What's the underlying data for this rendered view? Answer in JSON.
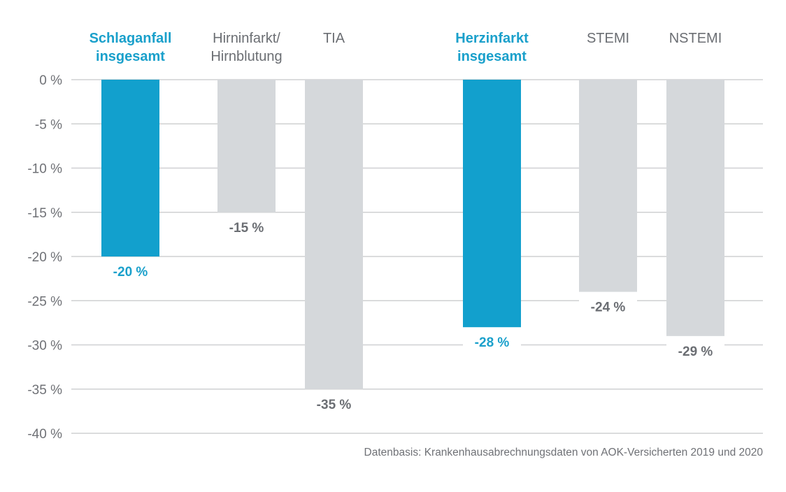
{
  "chart_data": {
    "type": "bar",
    "title": "",
    "xlabel": "",
    "ylabel": "",
    "categories": [
      [
        "Schlaganfall",
        "insgesamt"
      ],
      [
        "Hirninfarkt/",
        "Hirnblutung"
      ],
      [
        "TIA"
      ],
      [
        "Herzinfarkt",
        "insgesamt"
      ],
      [
        "STEMI"
      ],
      [
        "NSTEMI"
      ]
    ],
    "values": [
      -20,
      -15,
      -35,
      -28,
      -24,
      -29
    ],
    "data_labels": [
      "-20 %",
      "-15 %",
      "-35 %",
      "-28 %",
      "-24 %",
      "-29 %"
    ],
    "highlight": [
      true,
      false,
      false,
      true,
      false,
      false
    ],
    "groups": [
      [
        "Schlaganfall insgesamt",
        "Hirninfarkt/Hirnblutung",
        "TIA"
      ],
      [
        "Herzinfarkt insgesamt",
        "STEMI",
        "NSTEMI"
      ]
    ],
    "ylim": [
      -40,
      0
    ],
    "yticks": [
      0,
      -5,
      -10,
      -15,
      -20,
      -25,
      -30,
      -35,
      -40
    ],
    "ytick_labels": [
      "0 %",
      "-5 %",
      "-10 %",
      "-15 %",
      "-20 %",
      "-25 %",
      "-30 %",
      "-35 %",
      "-40 %"
    ],
    "grid": true,
    "legend": "none",
    "colors": {
      "highlight": "#12a0cd",
      "normal": "#d5d8db",
      "highlight_text": "#1aa0cb",
      "normal_text": "#6b6e73",
      "grid": "#cfd0d2"
    }
  },
  "footer": {
    "source": "Datenbasis: Krankenhausabrechnungsdaten von AOK-Versicherten 2019 und 2020"
  }
}
